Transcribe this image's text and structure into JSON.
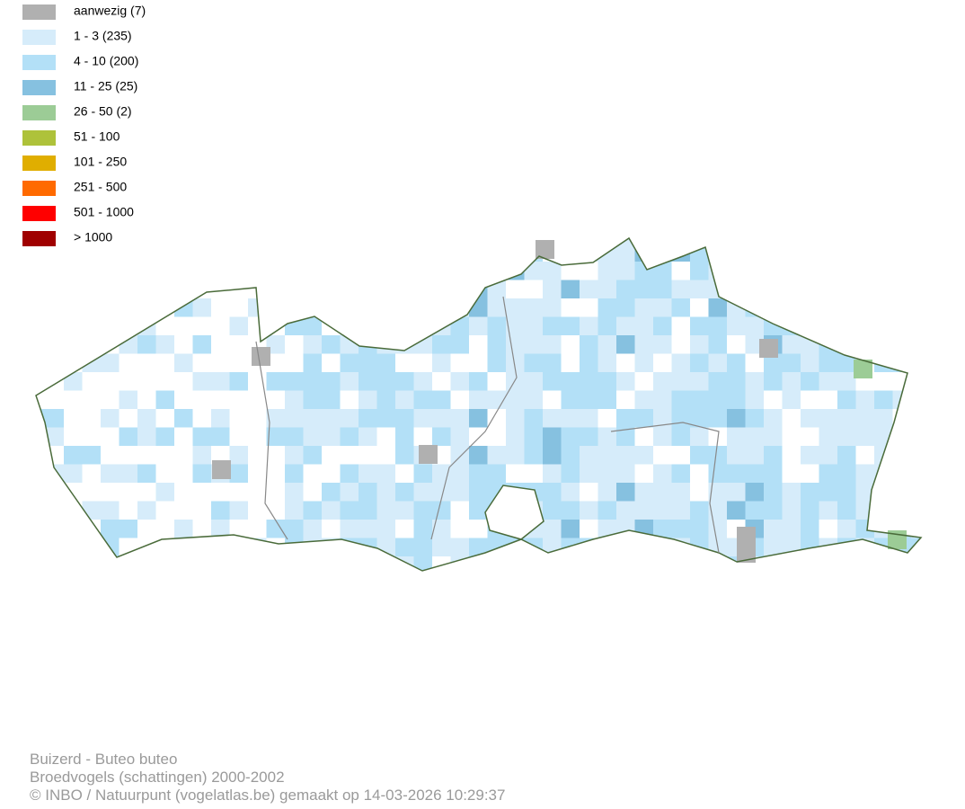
{
  "legend": [
    {
      "label": "aanwezig (7)",
      "color": "#b0b0b0"
    },
    {
      "label": "1 - 3 (235)",
      "color": "#d6ecfa"
    },
    {
      "label": "4 - 10 (200)",
      "color": "#b3e0f7"
    },
    {
      "label": "11 - 25 (25)",
      "color": "#86c1e0"
    },
    {
      "label": "26 - 50 (2)",
      "color": "#9ccc96"
    },
    {
      "label": "51 - 100",
      "color": "#aec23a"
    },
    {
      "label": "101 - 250",
      "color": "#e0ae00"
    },
    {
      "label": "251 - 500",
      "color": "#ff6a00"
    },
    {
      "label": "501 - 1000",
      "color": "#ff0000"
    },
    {
      "label": "> 1000",
      "color": "#a00000"
    }
  ],
  "footer": {
    "species": "Buizerd - Buteo buteo",
    "dataset": "Broedvogels (schattingen) 2000-2002",
    "credit": "© INBO / Natuurpunt (vogelatlas.be) gemaakt op 14-03-2026 10:29:37"
  }
}
